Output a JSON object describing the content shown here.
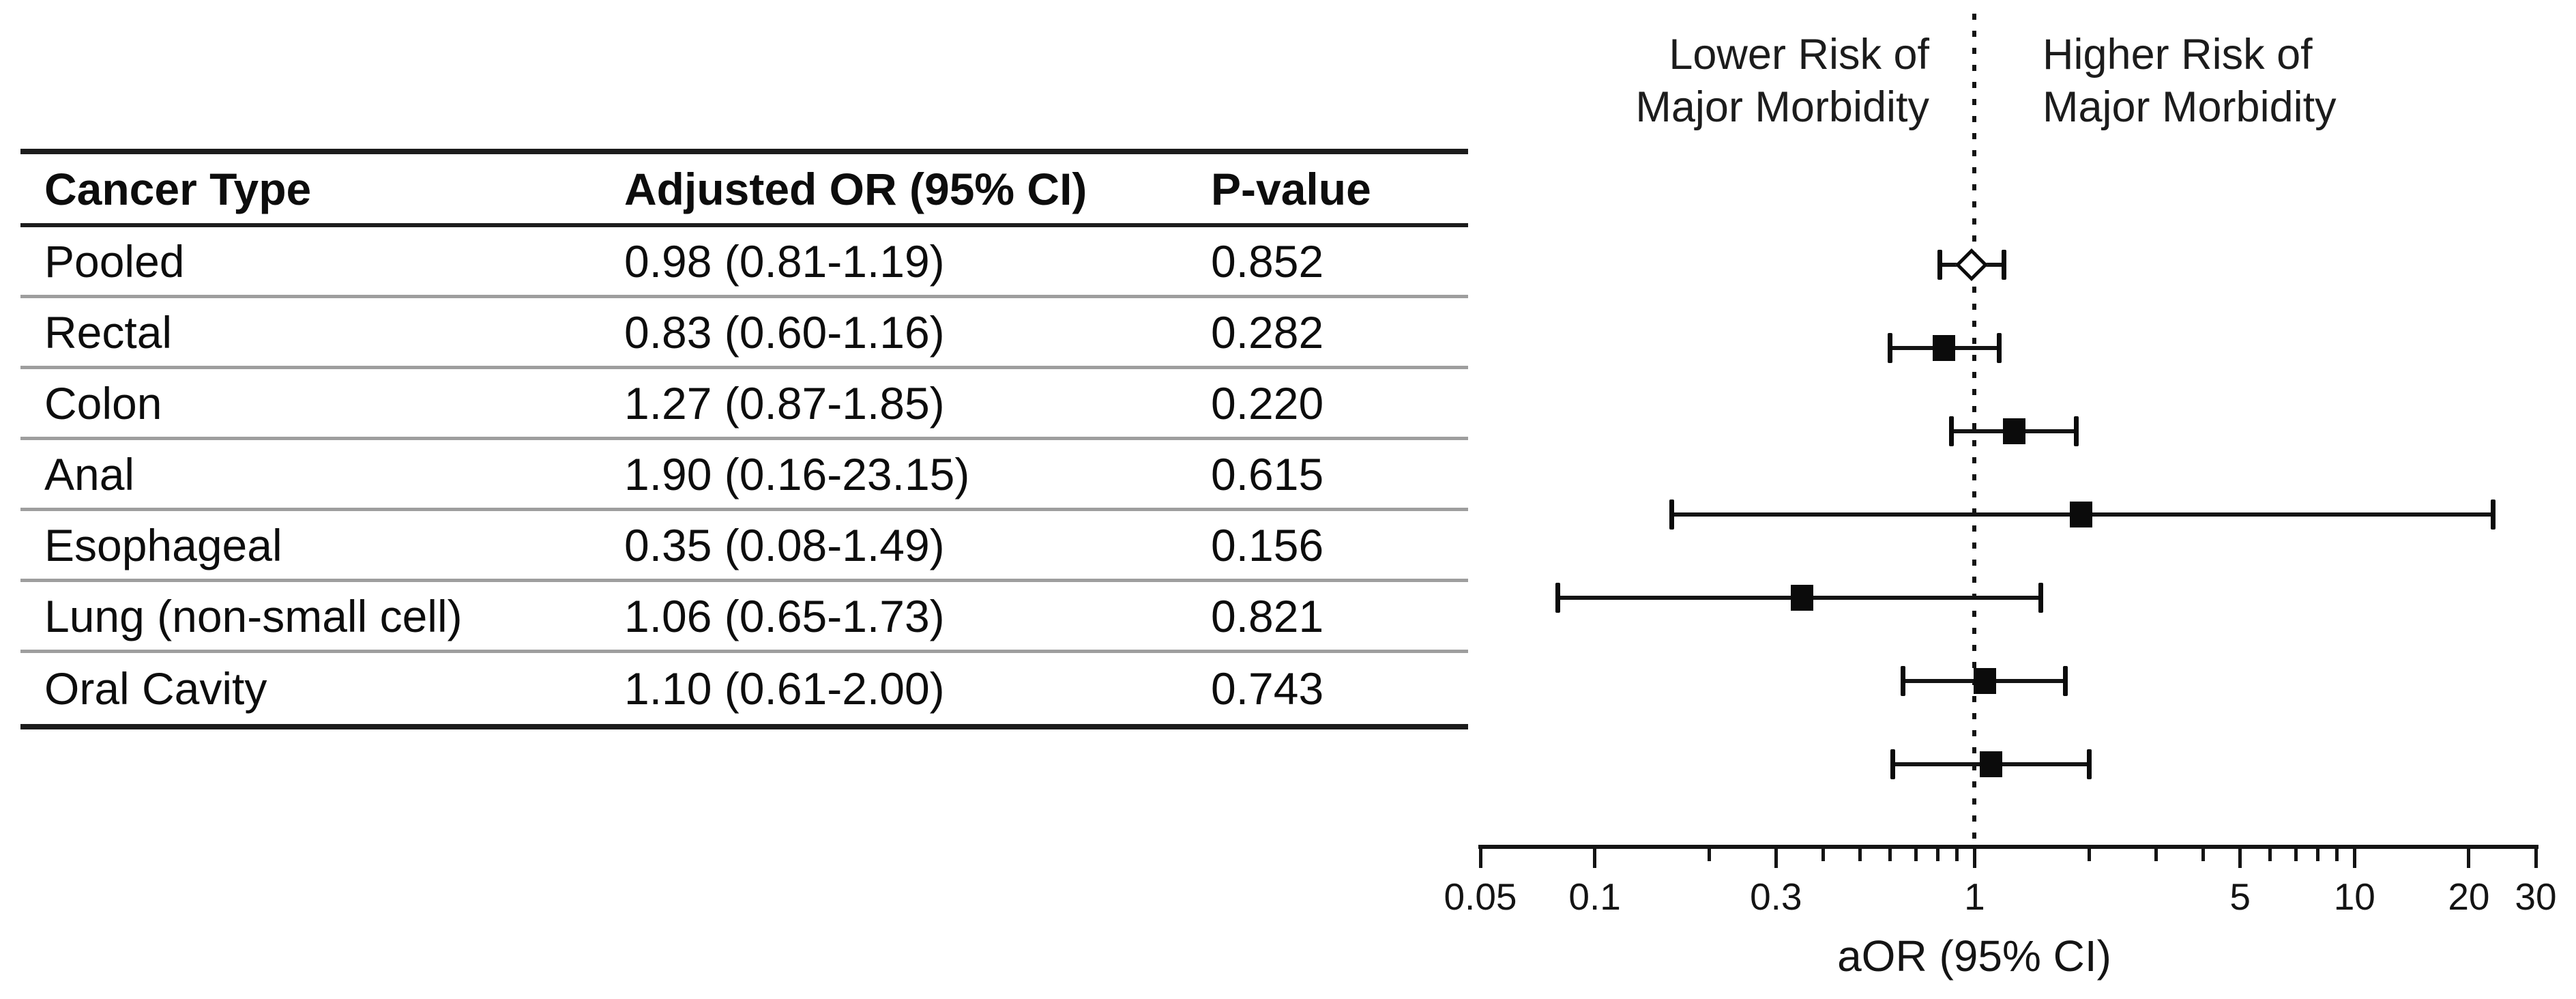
{
  "table": {
    "columns": [
      "Cancer Type",
      "Adjusted OR (95% CI)",
      "P-value"
    ],
    "rows": [
      {
        "cancer_type": "Pooled",
        "aor_ci": "0.98 (0.81-1.19)",
        "p_value": "0.852"
      },
      {
        "cancer_type": "Rectal",
        "aor_ci": "0.83 (0.60-1.16)",
        "p_value": "0.282"
      },
      {
        "cancer_type": "Colon",
        "aor_ci": "1.27 (0.87-1.85)",
        "p_value": "0.220"
      },
      {
        "cancer_type": "Anal",
        "aor_ci": "1.90 (0.16-23.15)",
        "p_value": "0.615"
      },
      {
        "cancer_type": "Esophageal",
        "aor_ci": "0.35 (0.08-1.49)",
        "p_value": "0.156"
      },
      {
        "cancer_type": "Lung (non-small cell)",
        "aor_ci": "1.06 (0.65-1.73)",
        "p_value": "0.821"
      },
      {
        "cancer_type": "Oral Cavity",
        "aor_ci": "1.10 (0.61-2.00)",
        "p_value": "0.743"
      }
    ]
  },
  "plot": {
    "left_label": "Lower Risk of\nMajor Morbidity",
    "right_label": "Higher Risk of\nMajor Morbidity",
    "axis_label": "aOR (95% CI)"
  },
  "colors": {
    "ink": "#0b0b0b",
    "separator_gray": "#9e9e9e",
    "background": "#ffffff"
  },
  "chart_data": {
    "type": "scatter",
    "subtype": "forest-plot",
    "x_scale": "log",
    "xlim": [
      0.05,
      30
    ],
    "xlabel": "aOR (95% CI)",
    "reference_line": 1,
    "annotations": [
      "Lower Risk of Major Morbidity",
      "Higher Risk of Major Morbidity"
    ],
    "series": [
      {
        "name": "Pooled",
        "or": 0.98,
        "ci_low": 0.81,
        "ci_high": 1.19,
        "p": 0.852,
        "marker": "diamond"
      },
      {
        "name": "Rectal",
        "or": 0.83,
        "ci_low": 0.6,
        "ci_high": 1.16,
        "p": 0.282,
        "marker": "square"
      },
      {
        "name": "Colon",
        "or": 1.27,
        "ci_low": 0.87,
        "ci_high": 1.85,
        "p": 0.22,
        "marker": "square"
      },
      {
        "name": "Anal",
        "or": 1.9,
        "ci_low": 0.16,
        "ci_high": 23.15,
        "p": 0.615,
        "marker": "square"
      },
      {
        "name": "Esophageal",
        "or": 0.35,
        "ci_low": 0.08,
        "ci_high": 1.49,
        "p": 0.156,
        "marker": "square"
      },
      {
        "name": "Lung (non-small cell)",
        "or": 1.06,
        "ci_low": 0.65,
        "ci_high": 1.73,
        "p": 0.821,
        "marker": "square"
      },
      {
        "name": "Oral Cavity",
        "or": 1.1,
        "ci_low": 0.61,
        "ci_high": 2.0,
        "p": 0.743,
        "marker": "square"
      }
    ],
    "x_ticks": [
      {
        "value": 0.05,
        "label": "0.05"
      },
      {
        "value": 0.1,
        "label": "0.1"
      },
      {
        "value": 0.2,
        "label": ""
      },
      {
        "value": 0.3,
        "label": "0.3"
      },
      {
        "value": 0.4,
        "label": ""
      },
      {
        "value": 0.5,
        "label": ""
      },
      {
        "value": 0.6,
        "label": ""
      },
      {
        "value": 0.7,
        "label": ""
      },
      {
        "value": 0.8,
        "label": ""
      },
      {
        "value": 0.9,
        "label": ""
      },
      {
        "value": 1,
        "label": "1"
      },
      {
        "value": 2,
        "label": ""
      },
      {
        "value": 3,
        "label": ""
      },
      {
        "value": 4,
        "label": ""
      },
      {
        "value": 5,
        "label": "5"
      },
      {
        "value": 6,
        "label": ""
      },
      {
        "value": 7,
        "label": ""
      },
      {
        "value": 8,
        "label": ""
      },
      {
        "value": 9,
        "label": ""
      },
      {
        "value": 10,
        "label": "10"
      },
      {
        "value": 20,
        "label": "20"
      },
      {
        "value": 30,
        "label": "30"
      }
    ]
  }
}
